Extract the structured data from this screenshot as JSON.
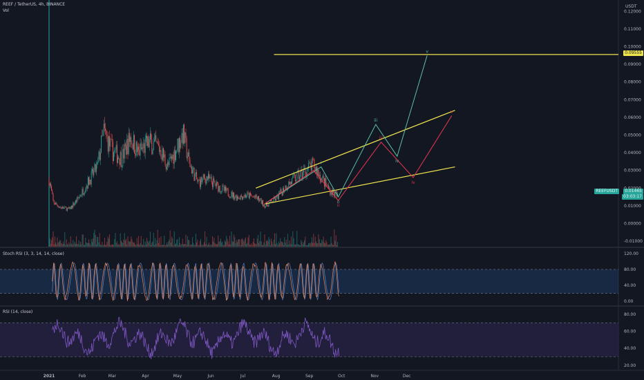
{
  "header": {
    "symbol_line": "REEF / TetherUS, 4h, BINANCE",
    "volume_label": "Vol",
    "stoch_label": "Stoch RSI (3, 3, 14, 14, close)",
    "rsi_label": "RSI (14, close)"
  },
  "price_axis": {
    "unit": "USDT",
    "ticks": [
      "0.12000",
      "0.11000",
      "0.10000",
      "0.09000",
      "0.08000",
      "0.07000",
      "0.06000",
      "0.05000",
      "0.04000",
      "0.03000",
      "0.02000",
      "0.01000",
      "0.00000",
      "-0.01000"
    ],
    "tick_values": [
      0.12,
      0.11,
      0.1,
      0.09,
      0.08,
      0.07,
      0.06,
      0.05,
      0.04,
      0.03,
      0.02,
      0.01,
      0.0,
      -0.01
    ],
    "highlight_price": "0.09555",
    "current_symbol_tag": "REEFUSDT",
    "current_price": "0.01465",
    "countdown": "03:03:17"
  },
  "stoch_axis": {
    "ticks": [
      "120.00",
      "80.00",
      "40.00",
      "0.00"
    ],
    "tick_values": [
      120,
      80,
      40,
      0
    ]
  },
  "rsi_axis": {
    "ticks": [
      "80.00",
      "60.00",
      "40.00",
      "20.00"
    ],
    "tick_values": [
      80,
      60,
      40,
      20
    ]
  },
  "time_axis": {
    "labels": [
      "2021",
      "Feb",
      "Mar",
      "Apr",
      "May",
      "Jun",
      "Jul",
      "Aug",
      "Sep",
      "Oct",
      "Nov",
      "Dec"
    ]
  },
  "colors": {
    "background": "#131722",
    "up": "#26a69a",
    "down": "#ef5350",
    "yellow": "#f0e44e",
    "teal_wave": "#5bbfa6",
    "red_wave": "#e8364f",
    "stoch_k": "#ef8a5b",
    "stoch_d": "#5b82c8",
    "rsi_line": "#7e57c2"
  },
  "chart_data": {
    "type": "candlestick",
    "title": "REEF / TetherUS, 4h, BINANCE",
    "ylabel": "USDT",
    "ylim": [
      -0.01,
      0.125
    ],
    "price_path": [
      {
        "x": "2021-01-01",
        "y": 0.025
      },
      {
        "x": "2021-01-05",
        "y": 0.012
      },
      {
        "x": "2021-01-12",
        "y": 0.009
      },
      {
        "x": "2021-01-20",
        "y": 0.008
      },
      {
        "x": "2021-01-28",
        "y": 0.014
      },
      {
        "x": "2021-02-05",
        "y": 0.022
      },
      {
        "x": "2021-02-15",
        "y": 0.032
      },
      {
        "x": "2021-02-21",
        "y": 0.052
      },
      {
        "x": "2021-03-01",
        "y": 0.041
      },
      {
        "x": "2021-03-10",
        "y": 0.037
      },
      {
        "x": "2021-03-18",
        "y": 0.049
      },
      {
        "x": "2021-03-25",
        "y": 0.04
      },
      {
        "x": "2021-04-05",
        "y": 0.046
      },
      {
        "x": "2021-04-15",
        "y": 0.042
      },
      {
        "x": "2021-04-22",
        "y": 0.032
      },
      {
        "x": "2021-05-01",
        "y": 0.044
      },
      {
        "x": "2021-05-06",
        "y": 0.051
      },
      {
        "x": "2021-05-12",
        "y": 0.034
      },
      {
        "x": "2021-05-20",
        "y": 0.023
      },
      {
        "x": "2021-05-28",
        "y": 0.026
      },
      {
        "x": "2021-06-05",
        "y": 0.022
      },
      {
        "x": "2021-06-15",
        "y": 0.018
      },
      {
        "x": "2021-06-25",
        "y": 0.015
      },
      {
        "x": "2021-07-05",
        "y": 0.016
      },
      {
        "x": "2021-07-15",
        "y": 0.014
      },
      {
        "x": "2021-07-22",
        "y": 0.01
      },
      {
        "x": "2021-08-01",
        "y": 0.014
      },
      {
        "x": "2021-08-10",
        "y": 0.021
      },
      {
        "x": "2021-08-20",
        "y": 0.026
      },
      {
        "x": "2021-08-28",
        "y": 0.03
      },
      {
        "x": "2021-09-05",
        "y": 0.033
      },
      {
        "x": "2021-09-12",
        "y": 0.026
      },
      {
        "x": "2021-09-20",
        "y": 0.019
      },
      {
        "x": "2021-09-28",
        "y": 0.015
      }
    ],
    "horizontal_line": {
      "price": 0.09555,
      "label": "0.09555"
    },
    "channel": {
      "upper": [
        {
          "x": "2021-07-13",
          "y": 0.02
        },
        {
          "x": "2022-01-15",
          "y": 0.064
        }
      ],
      "lower": [
        {
          "x": "2021-07-21",
          "y": 0.011
        },
        {
          "x": "2022-01-15",
          "y": 0.032
        }
      ]
    },
    "wave_count_teal": [
      {
        "label": "",
        "x": "2021-07-21",
        "y": 0.011
      },
      {
        "label": "i",
        "x": "2021-09-12",
        "y": 0.032
      },
      {
        "label": "ii",
        "x": "2021-09-28",
        "y": 0.015
      },
      {
        "label": "iii",
        "x": "2021-11-02",
        "y": 0.056
      },
      {
        "label": "iv",
        "x": "2021-11-22",
        "y": 0.038
      },
      {
        "label": "v",
        "x": "2021-12-20",
        "y": 0.095
      }
    ],
    "wave_count_red": [
      {
        "label": "",
        "x": "2021-07-21",
        "y": 0.011
      },
      {
        "label": "i",
        "x": "2021-09-05",
        "y": 0.03
      },
      {
        "label": "ii",
        "x": "2021-09-28",
        "y": 0.013
      },
      {
        "label": "iii",
        "x": "2021-11-07",
        "y": 0.046
      },
      {
        "label": "iv",
        "x": "2021-12-07",
        "y": 0.026
      },
      {
        "label": "v",
        "x": "2022-01-12",
        "y": 0.061
      }
    ],
    "stoch_rsi": {
      "ylim": [
        -10,
        130
      ],
      "bands": [
        80,
        20
      ]
    },
    "rsi": {
      "ylim": [
        15,
        88
      ],
      "bands": [
        70,
        30
      ],
      "typical_range": [
        30,
        75
      ]
    }
  }
}
